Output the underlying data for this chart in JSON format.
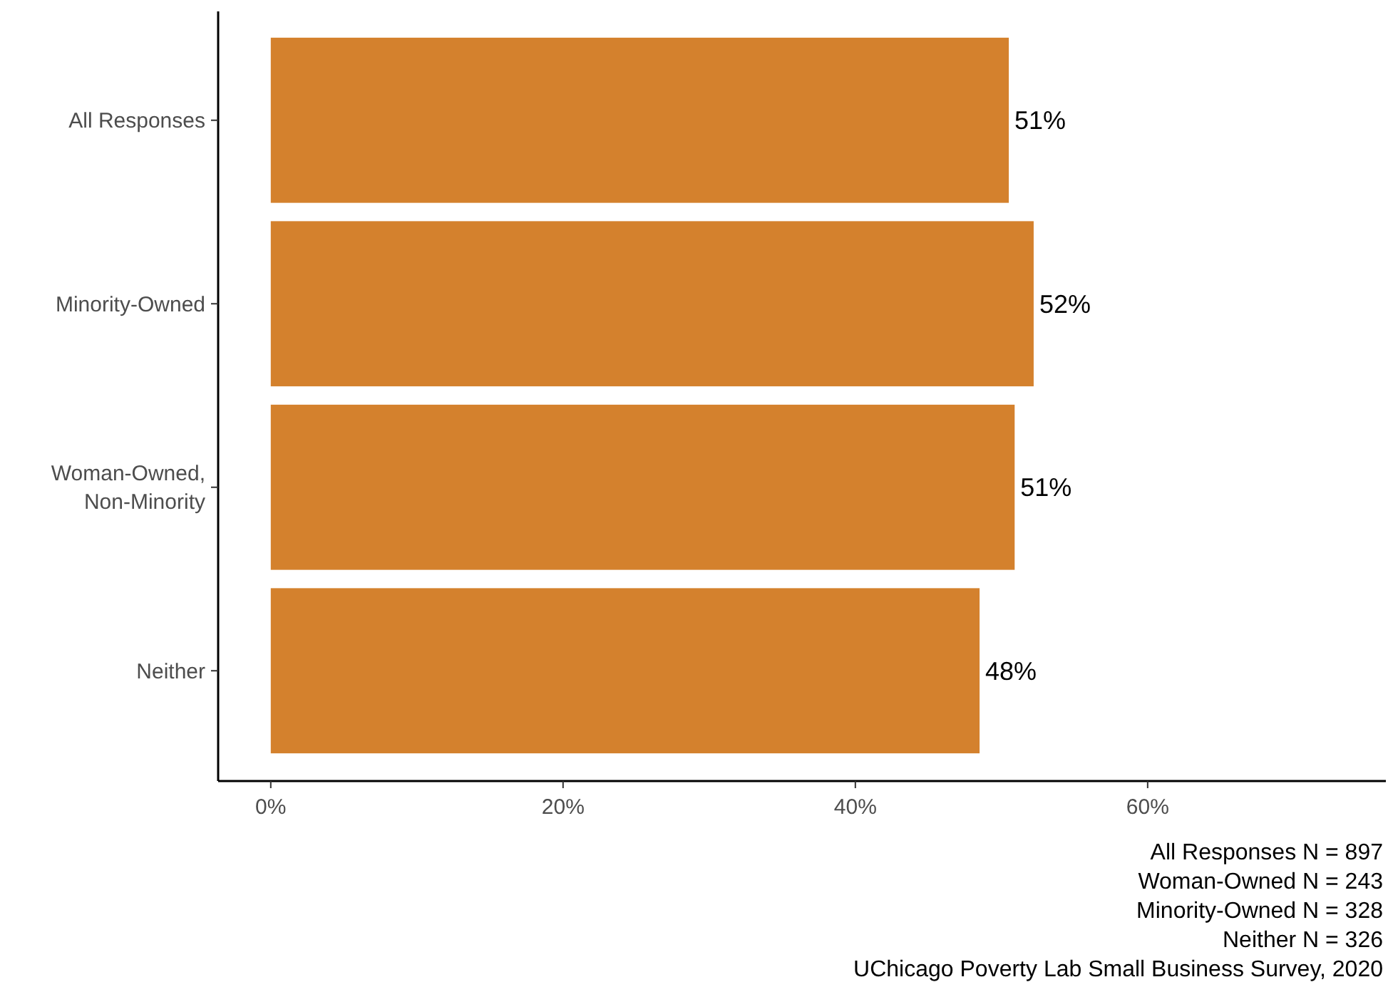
{
  "chart_data": {
    "type": "bar",
    "orientation": "horizontal",
    "categories": [
      "All Responses",
      "Minority-Owned",
      "Woman-Owned, Non-Minority",
      "Neither"
    ],
    "values": [
      50.5,
      52.2,
      50.9,
      48.5
    ],
    "value_labels": [
      "51%",
      "52%",
      "51%",
      "48%"
    ],
    "color": "#d4812d",
    "xlim": [
      -3.6,
      76.3
    ],
    "xticks": [
      {
        "value": 0,
        "label": "0%"
      },
      {
        "value": 20,
        "label": "20%"
      },
      {
        "value": 40,
        "label": "40%"
      },
      {
        "value": 60,
        "label": "60%"
      }
    ],
    "grid": false,
    "annotations": [
      "All Responses N = 897",
      "Woman-Owned N = 243",
      "Minority-Owned N = 328",
      "Neither N = 326",
      "UChicago Poverty Lab Small Business Survey, 2020"
    ]
  }
}
